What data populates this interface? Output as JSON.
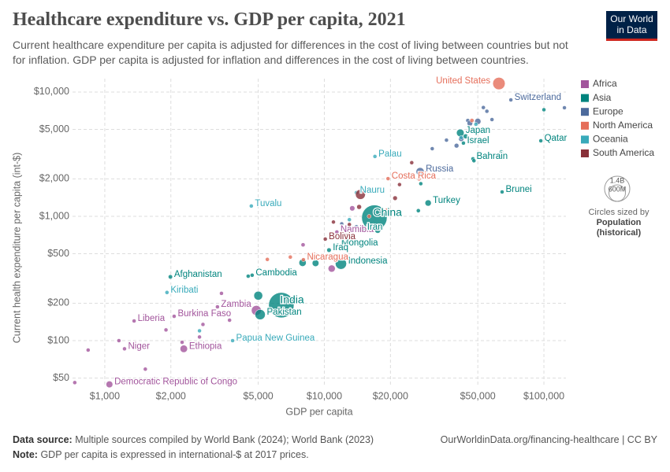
{
  "chart_data": {
    "type": "scatter",
    "title": "Healthcare expenditure vs. GDP per capita, 2021",
    "subtitle": "Current healthcare expenditure per capita is adjusted for differences in the cost of living between countries but not for inflation. GDP per capita is adjusted for inflation and differences in the cost of living between countries.",
    "x_label": "GDP per capita",
    "y_label": "Current health expenditure per capita (int-$)",
    "log_x": true,
    "log_y": true,
    "grid": true,
    "legend": "right",
    "xlim": [
      713,
      126000
    ],
    "ylim": [
      43.6,
      12800
    ],
    "xticks": [
      {
        "value": 1000,
        "label": "$1,000"
      },
      {
        "value": 2000,
        "label": "$2,000"
      },
      {
        "value": 5000,
        "label": "$5,000"
      },
      {
        "value": 10000,
        "label": "$10,000"
      },
      {
        "value": 20000,
        "label": "$20,000"
      },
      {
        "value": 50000,
        "label": "$50,000"
      },
      {
        "value": 100000,
        "label": "$100,000"
      }
    ],
    "yticks": [
      {
        "value": 50,
        "label": "$50"
      },
      {
        "value": 100,
        "label": "$100"
      },
      {
        "value": 200,
        "label": "$200"
      },
      {
        "value": 500,
        "label": "$500"
      },
      {
        "value": 1000,
        "label": "$1,000"
      },
      {
        "value": 2000,
        "label": "$2,000"
      },
      {
        "value": 5000,
        "label": "$5,000"
      },
      {
        "value": 10000,
        "label": "$10,000"
      }
    ],
    "series": [
      {
        "name": "Africa",
        "color": "#a2559c",
        "labels": [
          "Namibia",
          "Zambia",
          "Burkina Faso",
          "Liberia",
          "Niger",
          "Ethiopia",
          "Democratic Republic of Congo",
          null,
          null,
          null,
          null,
          null,
          null,
          null,
          null,
          null,
          null,
          null,
          null,
          null,
          null
        ],
        "x": [
          11400,
          3260,
          2070,
          1360,
          1230,
          2290,
          1050,
          730,
          840,
          1160,
          1530,
          2250,
          2700,
          3700,
          1900,
          2800,
          4900,
          13400,
          10800,
          3400,
          8000
        ],
        "values": [
          748,
          187,
          157,
          144,
          86,
          86,
          44.5,
          46,
          84,
          100,
          59,
          97,
          107,
          146,
          122,
          135,
          175,
          1160,
          380,
          240,
          590
        ],
        "sizes": [
          2600000,
          20000000,
          22000000,
          5000000,
          25000000,
          120000000,
          99000000,
          12000000,
          6000000,
          3000000,
          8000000,
          20000000,
          12000000,
          8000000,
          15000000,
          3000000,
          213000000,
          60000000,
          110000000,
          4000000,
          37000000
        ]
      },
      {
        "name": "Asia",
        "color": "#00847e",
        "labels": [
          "Japan",
          "Qatar",
          "Israel",
          "Bahrain",
          "Brunei",
          "Turkey",
          "China",
          "Iran",
          "Mongolia",
          "Iraq",
          "Indonesia",
          "Afghanistan",
          "Cambodia",
          "India",
          "Pakistan",
          null,
          null,
          null,
          null,
          null,
          null,
          null,
          null,
          null,
          null,
          null,
          null
        ],
        "x": [
          41600,
          96800,
          43000,
          47500,
          64500,
          29700,
          16900,
          14900,
          11500,
          10500,
          11900,
          1990,
          4690,
          6370,
          5100,
          100000,
          44000,
          26800,
          27500,
          48000,
          64000,
          7960,
          9120,
          17500,
          14000,
          5000,
          4500
        ],
        "values": [
          4690,
          4050,
          3880,
          2900,
          1570,
          1280,
          975,
          780,
          585,
          535,
          416,
          326,
          336,
          193,
          162,
          7200,
          4400,
          1110,
          1830,
          2800,
          3300,
          423,
          420,
          770,
          620,
          230,
          330
        ],
        "sizes": [
          125000000,
          2700000,
          9400000,
          1500000,
          440000,
          85000000,
          1412000000,
          88000000,
          3300000,
          43000000,
          274000000,
          40000000,
          16000000,
          1408000000,
          231000000,
          6000000,
          51000000,
          35000000,
          5000000,
          9000000,
          3000000,
          114000000,
          98000000,
          70000000,
          22000000,
          169000000,
          30000000
        ]
      },
      {
        "name": "Europe",
        "color": "#4c6a9c",
        "labels": [
          "Switzerland",
          "Russia",
          null,
          null,
          null,
          null,
          null,
          null,
          null,
          null,
          null,
          null,
          null,
          null,
          null,
          null,
          null,
          null
        ],
        "x": [
          70700,
          27300,
          53000,
          55000,
          58000,
          50000,
          45000,
          46000,
          42000,
          40000,
          33000,
          36000,
          31000,
          28000,
          24000,
          12000,
          14000,
          124000
        ],
        "values": [
          8640,
          2290,
          7500,
          7000,
          6000,
          5800,
          5900,
          5600,
          4200,
          3700,
          2400,
          4100,
          3500,
          2200,
          2100,
          870,
          820,
          7470
        ],
        "sizes": [
          8700000,
          144000000,
          6000000,
          10000000,
          9000000,
          83000000,
          5000000,
          67000000,
          59000000,
          47000000,
          38000000,
          10000000,
          5000000,
          10000000,
          9000000,
          3000000,
          44000000,
          640000
        ]
      },
      {
        "name": "North America",
        "color": "#e56e5a",
        "labels": [
          "United States",
          "Costa Rica",
          "Nicaragua",
          null,
          null,
          null,
          null,
          null,
          null
        ],
        "x": [
          62400,
          19500,
          8030,
          47000,
          19500,
          16000,
          7000,
          27000,
          5500
        ],
        "values": [
          11700,
          2010,
          448,
          5900,
          1090,
          1000,
          470,
          2000,
          450
        ],
        "sizes": [
          334000000,
          5100000,
          6800000,
          38000000,
          128000000,
          3000000,
          17000000,
          3000000,
          10000000
        ]
      },
      {
        "name": "Oceania",
        "color": "#38aaba",
        "labels": [
          "Palau",
          "Nauru",
          "Tuvalu",
          "Kiribati",
          "Papua New Guinea",
          null,
          null,
          null,
          null,
          null
        ],
        "x": [
          17000,
          14000,
          4650,
          1920,
          3820,
          49000,
          42000,
          13000,
          2700,
          6000
        ],
        "values": [
          3030,
          1550,
          1210,
          244,
          100,
          5500,
          4300,
          940,
          120,
          350
        ],
        "sizes": [
          18000,
          12000,
          11000,
          130000,
          10000000,
          26000000,
          5000000,
          900000,
          700000,
          200000
        ]
      },
      {
        "name": "South America",
        "color": "#883039",
        "labels": [
          "Bolivia",
          null,
          null,
          null,
          null,
          null,
          null,
          null,
          null
        ],
        "x": [
          10100,
          22000,
          25000,
          21000,
          14600,
          14400,
          13000,
          11000,
          12500
        ],
        "values": [
          656,
          1800,
          2700,
          1400,
          1500,
          1190,
          860,
          900,
          700
        ],
        "sizes": [
          12000000,
          19000000,
          3500000,
          45000000,
          214000000,
          50000000,
          33000000,
          18000000,
          7000000
        ]
      }
    ],
    "size_legend": {
      "values": [
        {
          "value": 1400000000,
          "label": "1.4B"
        },
        {
          "value": 600000000,
          "label": "600M"
        }
      ],
      "title": [
        "Circles sized by",
        "Population",
        "(historical)"
      ]
    }
  },
  "logo": [
    "Our World",
    "in Data"
  ],
  "footer": {
    "source_label": "Data source:",
    "source": "Multiple sources compiled by World Bank (2024); World Bank (2023)",
    "note_label": "Note:",
    "note": "GDP per capita is expressed in international-$ at 2017 prices.",
    "url": "OurWorldinData.org/financing-healthcare | CC BY"
  }
}
